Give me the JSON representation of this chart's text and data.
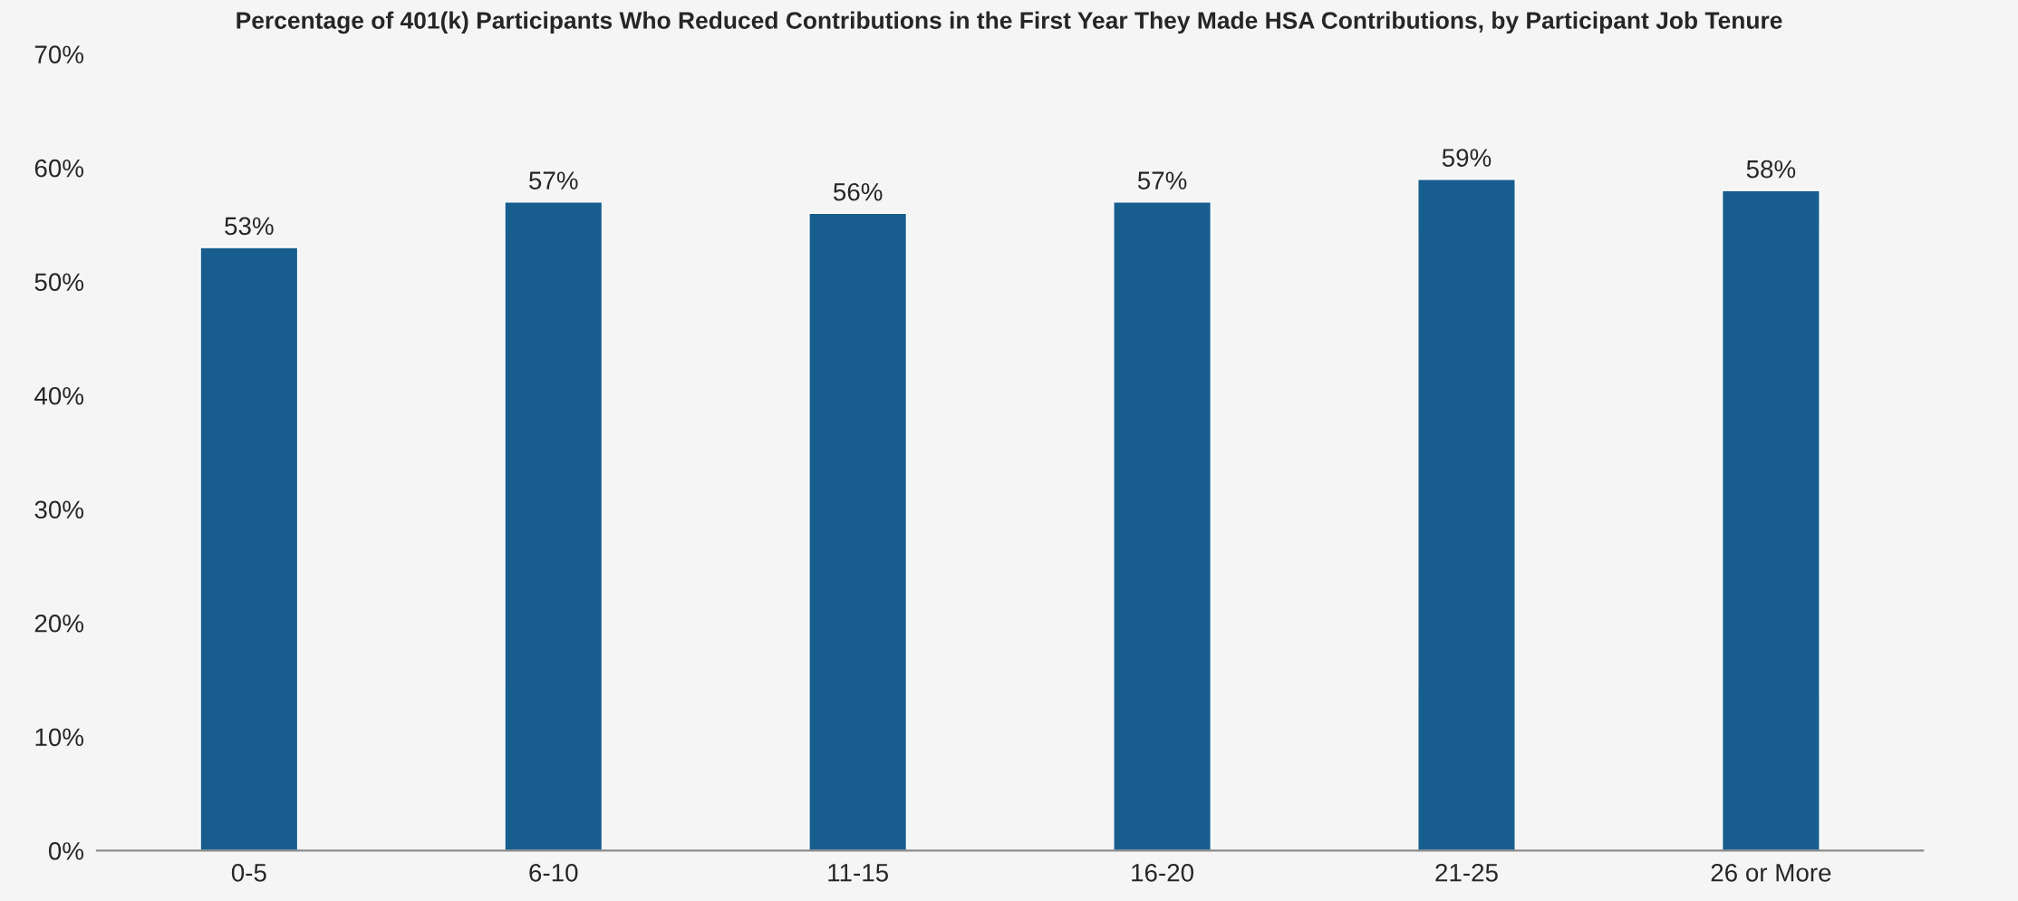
{
  "chart_data": {
    "type": "bar",
    "title": "Percentage of 401(k) Participants Who Reduced Contributions in the First Year They Made HSA Contributions, by Participant Job Tenure",
    "categories": [
      "0-5",
      "6-10",
      "11-15",
      "16-20",
      "21-25",
      "26 or More"
    ],
    "values": [
      53,
      57,
      56,
      57,
      59,
      58
    ],
    "color": "#175e8f",
    "data_labels": true,
    "value_labels": [
      "53%",
      "57%",
      "56%",
      "57%",
      "59%",
      "58%"
    ],
    "ylim": [
      0,
      70
    ],
    "yticks": [
      {
        "value": 0,
        "label": "0%"
      },
      {
        "value": 10,
        "label": "10%"
      },
      {
        "value": 20,
        "label": "20%"
      },
      {
        "value": 30,
        "label": "30%"
      },
      {
        "value": 40,
        "label": "40%"
      },
      {
        "value": 50,
        "label": "50%"
      },
      {
        "value": 60,
        "label": "60%"
      },
      {
        "value": 70,
        "label": "70%"
      }
    ],
    "grid": false,
    "legend": false
  }
}
